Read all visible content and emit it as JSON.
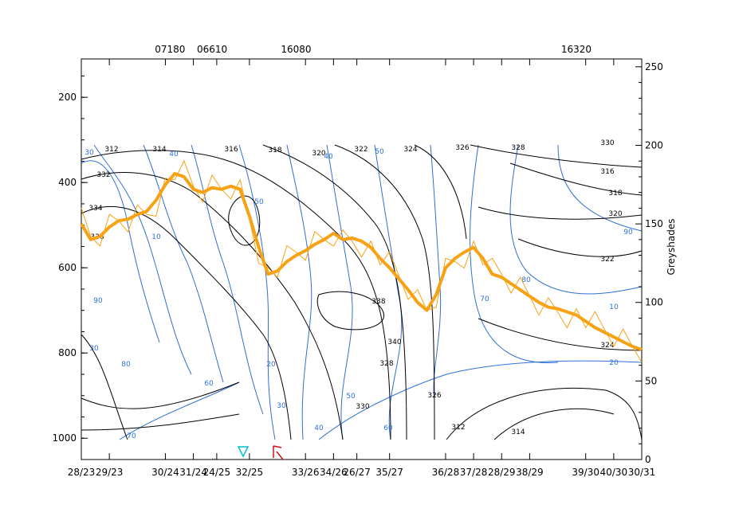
{
  "chart_data": {
    "type": "line",
    "top_labels": [
      "07180",
      "06610",
      "16080",
      "16320"
    ],
    "top_label_positions": [
      9.5,
      14.0,
      23.0,
      53.0
    ],
    "x_tick_labels": [
      "28/23",
      "29/23",
      "30/24",
      "31/24",
      "24/25",
      "32/25",
      "33/26",
      "34/26",
      "26/27",
      "35/27",
      "36/28",
      "37/28",
      "28/29",
      "38/29",
      "39/30",
      "40/30",
      "30/31"
    ],
    "x_tick_positions": [
      0,
      3,
      9,
      12,
      14.5,
      18,
      24,
      27,
      29.5,
      33,
      39,
      42,
      45,
      48,
      54,
      57,
      60
    ],
    "x_range": [
      0,
      60
    ],
    "left_axis": {
      "ticks": [
        200,
        400,
        600,
        800,
        1000
      ],
      "range": [
        1050,
        110
      ],
      "label": ""
    },
    "right_axis": {
      "ticks": [
        0,
        50,
        100,
        150,
        200,
        250
      ],
      "range": [
        0,
        255
      ],
      "label": "Greyshades"
    },
    "series": [
      {
        "name": "",
        "color": "#f7a215",
        "axis": "right",
        "x": [
          0,
          1,
          2,
          3,
          4,
          5,
          6,
          7,
          8,
          9,
          10,
          11,
          12,
          13,
          14,
          15,
          16,
          17,
          18,
          19,
          20,
          21,
          22,
          23,
          24,
          25,
          26,
          27,
          28,
          29,
          30,
          31,
          32,
          33,
          34,
          35,
          36,
          37,
          38,
          39,
          40,
          41,
          42,
          43,
          44,
          45,
          46,
          47,
          48,
          49,
          50,
          51,
          52,
          53,
          54,
          55,
          56,
          57,
          58,
          59,
          60
        ],
        "y": [
          150,
          140,
          142,
          148,
          152,
          153,
          156,
          158,
          165,
          175,
          182,
          180,
          172,
          170,
          173,
          172,
          174,
          172,
          155,
          135,
          118,
          120,
          126,
          130,
          133,
          137,
          140,
          144,
          140,
          141,
          139,
          135,
          128,
          122,
          115,
          108,
          100,
          95,
          105,
          122,
          128,
          132,
          135,
          128,
          118,
          116,
          112,
          108,
          104,
          100,
          97,
          96,
          94,
          92,
          88,
          84,
          81,
          78,
          75,
          72,
          70
        ]
      }
    ],
    "annotations": [
      "312",
      "314",
      "316",
      "318",
      "320",
      "322",
      "324",
      "326",
      "328",
      "330",
      "332",
      "334",
      "336",
      "338",
      "340",
      "30",
      "40",
      "50",
      "60",
      "70",
      "80",
      "90",
      "10",
      "20"
    ]
  }
}
